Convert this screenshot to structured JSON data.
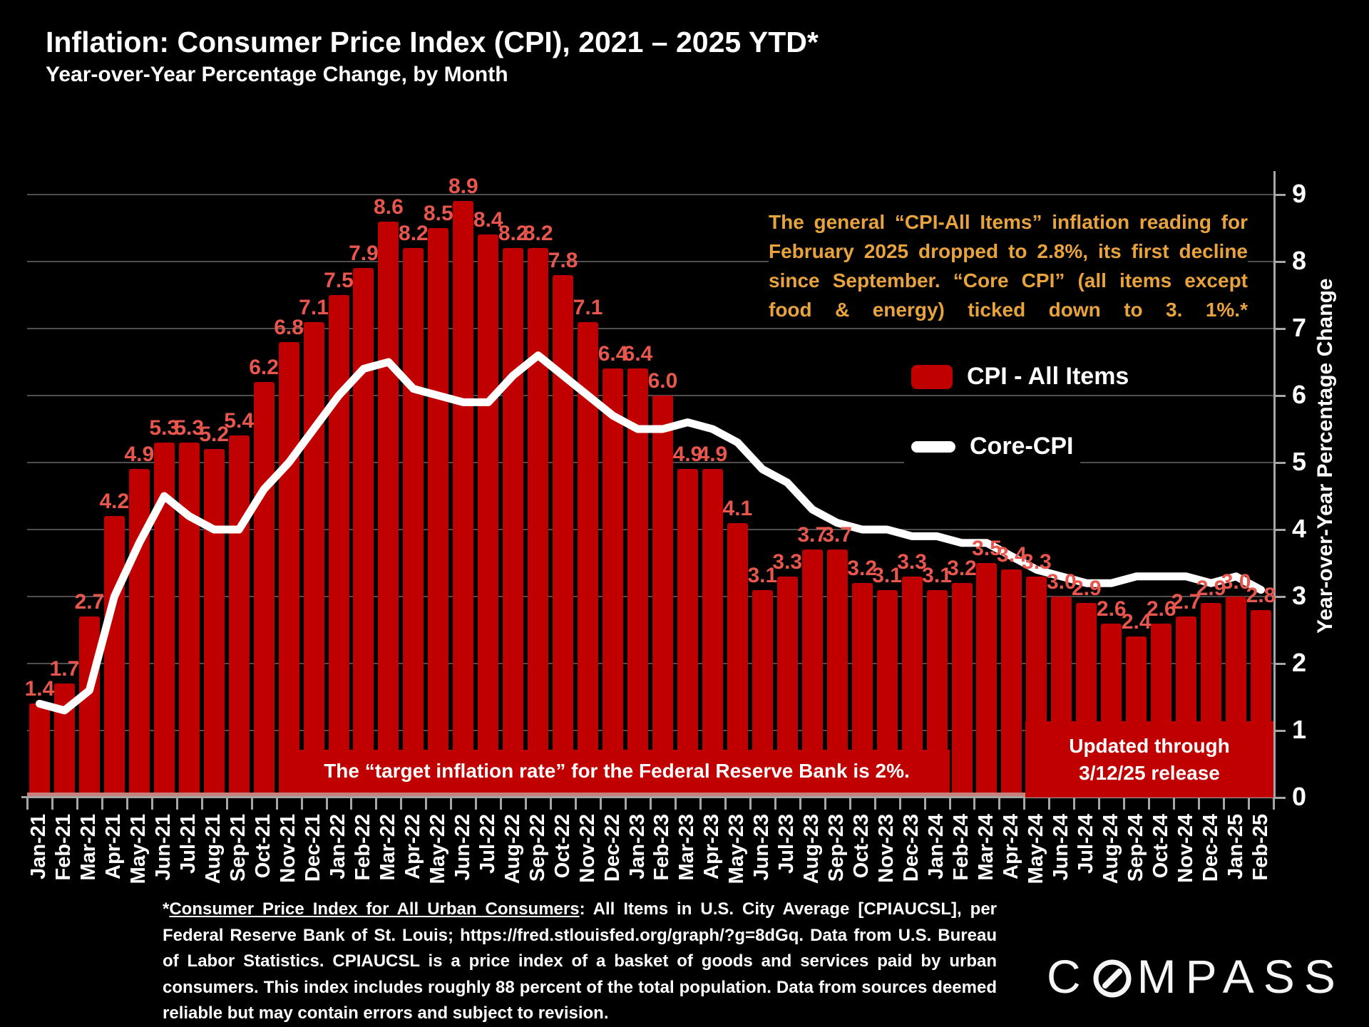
{
  "slide": {
    "title": "Inflation: Consumer Price Index (CPI), 2021 – 2025 YTD*",
    "subtitle": "Year-over-Year Percentage Change, by Month",
    "annotation": "The general “CPI-All Items” inflation reading for February 2025 dropped to 2.8%, its first decline since September. “Core CPI” (all items except food & energy) ticked down to 3. 1%.*",
    "target_note": "The “target inflation rate” for the Federal Reserve Bank is 2%.",
    "updated_note_line1": "Updated through",
    "updated_note_line2": "3/12/25 release",
    "footnote_star": "*",
    "footnote_underlined": "Consumer Price Index for All Urban Consumers",
    "footnote_rest": ": All Items in U.S. City Average [CPIAUCSL], per Federal Reserve Bank of St. Louis; https://fred.stlouisfed.org/graph/?g=8dGq. Data from U.S. Bureau of Labor Statistics. CPIAUCSL is a price index of a basket of goods and services paid by urban consumers. This index includes roughly 88 percent of the total population. Data from sources deemed reliable but may contain errors and subject to revision.",
    "logo_text_c": "C",
    "logo_text_rest": "MPASS",
    "colors": {
      "background": "#000000",
      "bar": "#C00000",
      "bar_label": "#E8564E",
      "line": "#FFFFFF",
      "annotation": "#E8A33D",
      "gridline": "#4F4F4F",
      "axis": "#A6A6A6",
      "baseline_accent": "#C9807C"
    }
  },
  "legend": {
    "items": [
      {
        "label": "CPI - All Items",
        "type": "bar"
      },
      {
        "label": "Core-CPI",
        "type": "line"
      }
    ]
  },
  "chart_data": {
    "type": "bar",
    "title": "Inflation: Consumer Price Index (CPI), 2021 – 2025 YTD*",
    "subtitle": "Year-over-Year Percentage Change, by Month",
    "xlabel": "",
    "ylabel": "Year-over-Year Percentage Change",
    "ylim": [
      0,
      9
    ],
    "yticks": [
      0,
      1,
      2,
      3,
      4,
      5,
      6,
      7,
      8,
      9
    ],
    "grid": true,
    "legend_position": "right",
    "data_labels": "one-decimal labels above each bar",
    "categories": [
      "Jan-21",
      "Feb-21",
      "Mar-21",
      "Apr-21",
      "May-21",
      "Jun-21",
      "Jul-21",
      "Aug-21",
      "Sep-21",
      "Oct-21",
      "Nov-21",
      "Dec-21",
      "Jan-22",
      "Feb-22",
      "Mar-22",
      "Apr-22",
      "May-22",
      "Jun-22",
      "Jul-22",
      "Aug-22",
      "Sep-22",
      "Oct-22",
      "Nov-22",
      "Dec-22",
      "Jan-23",
      "Feb-23",
      "Mar-23",
      "Apr-23",
      "May-23",
      "Jun-23",
      "Jul-23",
      "Aug-23",
      "Sep-23",
      "Oct-23",
      "Nov-23",
      "Dec-23",
      "Jan-24",
      "Feb-24",
      "Mar-24",
      "Apr-24",
      "May-24",
      "Jun-24",
      "Jul-24",
      "Aug-24",
      "Sep-24",
      "Oct-24",
      "Nov-24",
      "Dec-24",
      "Jan-25",
      "Feb-25"
    ],
    "series": [
      {
        "name": "CPI - All Items",
        "type": "bar",
        "values": [
          1.4,
          1.7,
          2.7,
          4.2,
          4.9,
          5.3,
          5.3,
          5.2,
          5.4,
          6.2,
          6.8,
          7.1,
          7.5,
          7.9,
          8.6,
          8.2,
          8.5,
          8.9,
          8.4,
          8.2,
          8.2,
          7.8,
          7.1,
          6.4,
          6.4,
          6.0,
          4.9,
          4.9,
          4.1,
          3.1,
          3.3,
          3.7,
          3.7,
          3.2,
          3.1,
          3.3,
          3.1,
          3.2,
          3.5,
          3.4,
          3.3,
          3.0,
          2.9,
          2.6,
          2.4,
          2.6,
          2.7,
          2.9,
          3.0,
          2.8
        ]
      },
      {
        "name": "Core-CPI",
        "type": "line",
        "values": [
          1.4,
          1.3,
          1.6,
          3.0,
          3.8,
          4.5,
          4.2,
          4.0,
          4.0,
          4.6,
          5.0,
          5.5,
          6.0,
          6.4,
          6.5,
          6.1,
          6.0,
          5.9,
          5.9,
          6.3,
          6.6,
          6.3,
          6.0,
          5.7,
          5.5,
          5.5,
          5.6,
          5.5,
          5.3,
          4.9,
          4.7,
          4.3,
          4.1,
          4.0,
          4.0,
          3.9,
          3.9,
          3.8,
          3.8,
          3.6,
          3.4,
          3.3,
          3.2,
          3.2,
          3.3,
          3.3,
          3.3,
          3.2,
          3.3,
          3.1
        ]
      }
    ]
  }
}
